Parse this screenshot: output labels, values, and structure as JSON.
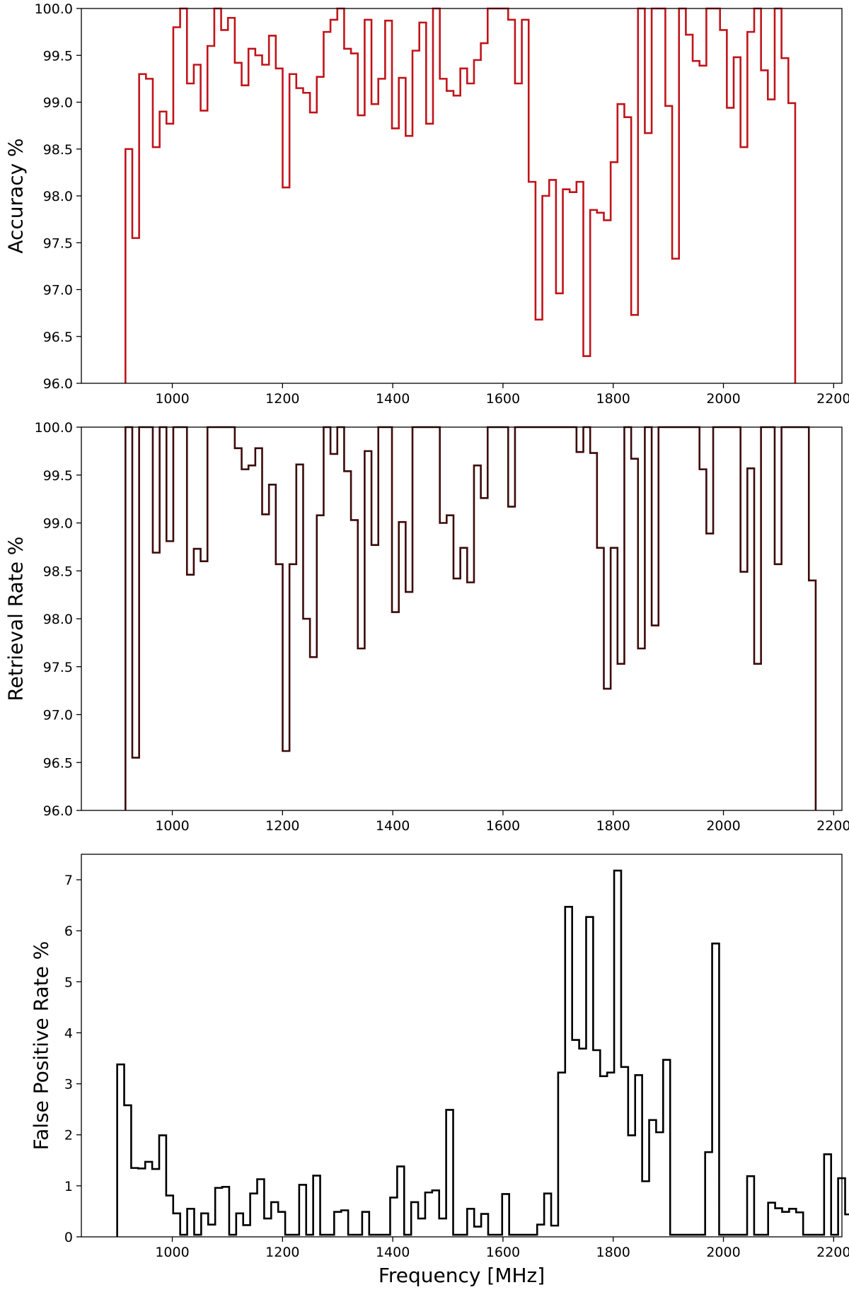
{
  "chart_data": [
    {
      "type": "step",
      "ylabel": "Accuracy %",
      "xlabel": "",
      "color": "#c0141a",
      "xlim": [
        835,
        2215
      ],
      "ylim": [
        96.0,
        100.0
      ],
      "xticks": [
        1000,
        1200,
        1400,
        1600,
        1800,
        2000,
        2200
      ],
      "yticks": [
        96.0,
        96.5,
        97.0,
        97.5,
        98.0,
        98.5,
        99.0,
        99.5,
        100.0
      ],
      "ytick_decimals": 1,
      "x_start": 915,
      "bin_width": 12.4,
      "values": [
        98.5,
        97.55,
        99.3,
        99.25,
        98.52,
        98.9,
        98.77,
        99.8,
        100.0,
        99.2,
        99.4,
        98.91,
        99.6,
        100.0,
        99.77,
        99.9,
        99.42,
        99.18,
        99.57,
        99.5,
        99.4,
        99.71,
        99.36,
        98.09,
        99.3,
        99.15,
        99.1,
        98.89,
        99.27,
        99.75,
        99.88,
        100.0,
        99.57,
        99.52,
        98.86,
        99.88,
        98.98,
        99.25,
        99.87,
        98.72,
        99.26,
        98.64,
        99.55,
        99.85,
        98.77,
        100.0,
        99.25,
        99.12,
        99.07,
        99.36,
        99.2,
        99.45,
        99.63,
        100.0,
        100.0,
        100.0,
        99.88,
        99.2,
        99.88,
        98.15,
        96.68,
        98.0,
        98.17,
        96.96,
        98.07,
        98.04,
        98.15,
        96.29,
        97.85,
        97.82,
        97.74,
        98.36,
        98.98,
        98.84,
        96.73,
        100.0,
        98.67,
        100.0,
        100.0,
        98.96,
        97.33,
        100.0,
        99.72,
        99.44,
        99.39,
        100.0,
        100.0,
        99.77,
        98.94,
        99.48,
        98.52,
        99.75,
        100.0,
        99.34,
        99.03,
        100.0,
        99.47,
        98.99
      ],
      "close_to_axis": true
    },
    {
      "type": "step",
      "ylabel": "Retrieval Rate %",
      "xlabel": "",
      "color": "#3d0a0a",
      "xlim": [
        835,
        2215
      ],
      "ylim": [
        96.0,
        100.0
      ],
      "xticks": [
        1000,
        1200,
        1400,
        1600,
        1800,
        2000,
        2200
      ],
      "yticks": [
        96.0,
        96.5,
        97.0,
        97.5,
        98.0,
        98.5,
        99.0,
        99.5,
        100.0
      ],
      "ytick_decimals": 1,
      "x_start": 915,
      "bin_width": 12.4,
      "values": [
        100.0,
        96.55,
        100.0,
        100.0,
        98.69,
        100.0,
        98.81,
        100.0,
        100.0,
        98.46,
        98.73,
        98.6,
        100.0,
        100.0,
        100.0,
        100.0,
        99.78,
        99.56,
        99.6,
        99.78,
        99.09,
        99.4,
        98.57,
        96.62,
        98.57,
        99.61,
        98.0,
        97.6,
        99.08,
        100.0,
        99.72,
        100.0,
        99.54,
        99.03,
        97.69,
        99.75,
        98.77,
        100.0,
        100.0,
        98.07,
        99.01,
        98.28,
        100.0,
        100.0,
        100.0,
        100.0,
        99.0,
        99.08,
        98.42,
        98.74,
        98.38,
        99.6,
        99.26,
        100.0,
        100.0,
        100.0,
        99.17,
        100.0,
        100.0,
        100.0,
        100.0,
        100.0,
        100.0,
        100.0,
        100.0,
        100.0,
        99.74,
        100.0,
        99.73,
        98.74,
        97.27,
        98.74,
        97.53,
        100.0,
        99.67,
        97.69,
        100.0,
        97.93,
        100.0,
        100.0,
        100.0,
        100.0,
        100.0,
        100.0,
        99.56,
        98.89,
        100.0,
        100.0,
        100.0,
        100.0,
        98.49,
        99.57,
        97.53,
        100.0,
        100.0,
        98.57,
        100.0,
        100.0,
        100.0,
        100.0,
        98.4
      ],
      "close_to_axis": true
    },
    {
      "type": "step",
      "ylabel": "False Positive Rate %",
      "xlabel": "Frequency [MHz]",
      "color": "#000000",
      "xlim": [
        835,
        2215
      ],
      "ylim": [
        0,
        7.5
      ],
      "xticks": [
        1000,
        1200,
        1400,
        1600,
        1800,
        2000,
        2200
      ],
      "yticks": [
        0,
        1,
        2,
        3,
        4,
        5,
        6,
        7
      ],
      "ytick_decimals": 0,
      "x_start": 900,
      "bin_width": 12.7,
      "values": [
        3.38,
        2.58,
        1.35,
        1.34,
        1.47,
        1.33,
        1.99,
        0.81,
        0.46,
        0.04,
        0.55,
        0.04,
        0.46,
        0.24,
        0.96,
        0.98,
        0.04,
        0.46,
        0.23,
        0.85,
        1.13,
        0.36,
        0.68,
        0.49,
        0.04,
        0.04,
        1.02,
        0.04,
        1.2,
        0.04,
        0.04,
        0.49,
        0.52,
        0.04,
        0.04,
        0.49,
        0.04,
        0.04,
        0.04,
        0.77,
        1.38,
        0.04,
        0.68,
        0.36,
        0.87,
        0.91,
        0.36,
        2.49,
        0.04,
        0.04,
        0.55,
        0.2,
        0.45,
        0.04,
        0.04,
        0.84,
        0.04,
        0.04,
        0.04,
        0.04,
        0.24,
        0.85,
        0.22,
        3.22,
        6.47,
        3.86,
        3.69,
        6.27,
        3.66,
        3.15,
        3.22,
        7.18,
        3.33,
        1.99,
        3.17,
        1.09,
        2.29,
        2.05,
        3.47,
        0.04,
        0.04,
        0.04,
        0.04,
        0.04,
        1.66,
        5.75,
        0.04,
        0.04,
        0.04,
        0.04,
        1.19,
        0.04,
        0.04,
        0.67,
        0.56,
        0.49,
        0.55,
        0.48,
        0.04,
        0.04,
        0.04,
        1.62,
        0.04,
        1.15,
        0.44
      ],
      "close_to_axis": true
    }
  ]
}
